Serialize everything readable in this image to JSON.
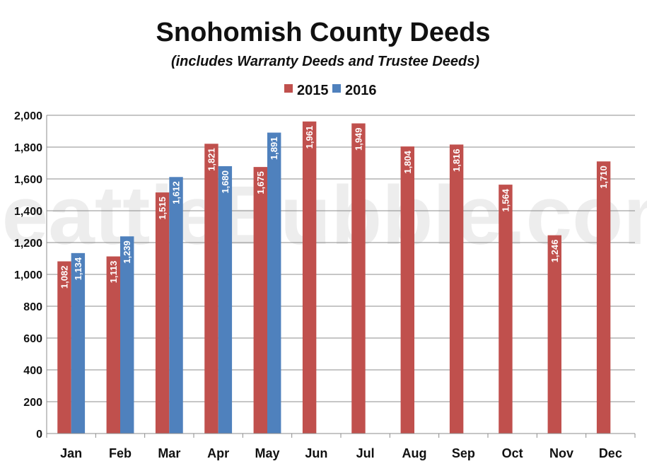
{
  "watermark": "SeattleBubble.com",
  "chart_data": {
    "type": "bar",
    "title": "Snohomish County Deeds",
    "subtitle": "(includes Warranty Deeds and Trustee Deeds)",
    "xlabel": "",
    "ylabel": "",
    "categories": [
      "Jan",
      "Feb",
      "Mar",
      "Apr",
      "May",
      "Jun",
      "Jul",
      "Aug",
      "Sep",
      "Oct",
      "Nov",
      "Dec"
    ],
    "series": [
      {
        "name": "2015",
        "color": "#c0504d",
        "values": [
          1082,
          1113,
          1515,
          1821,
          1675,
          1961,
          1949,
          1804,
          1816,
          1564,
          1246,
          1710
        ],
        "labels": [
          "1,082",
          "1,113",
          "1,515",
          "1,821",
          "1,675",
          "1,961",
          "1,949",
          "1,804",
          "1,816",
          "1,564",
          "1,246",
          "1,710"
        ]
      },
      {
        "name": "2016",
        "color": "#4f81bd",
        "values": [
          1134,
          1239,
          1612,
          1680,
          1891,
          null,
          null,
          null,
          null,
          null,
          null,
          null
        ],
        "labels": [
          "1,134",
          "1,239",
          "1,612",
          "1,680",
          "1,891",
          "",
          "",
          "",
          "",
          "",
          "",
          ""
        ]
      }
    ],
    "ylim": [
      0,
      2000
    ],
    "yticks": [
      0,
      200,
      400,
      600,
      800,
      1000,
      1200,
      1400,
      1600,
      1800,
      2000
    ],
    "ytick_labels": [
      "0",
      "200",
      "400",
      "600",
      "800",
      "1,000",
      "1,200",
      "1,400",
      "1,600",
      "1,800",
      "2,000"
    ],
    "grid": true,
    "legend_position": "top-center",
    "data_labels": "inside-end-rotated"
  }
}
